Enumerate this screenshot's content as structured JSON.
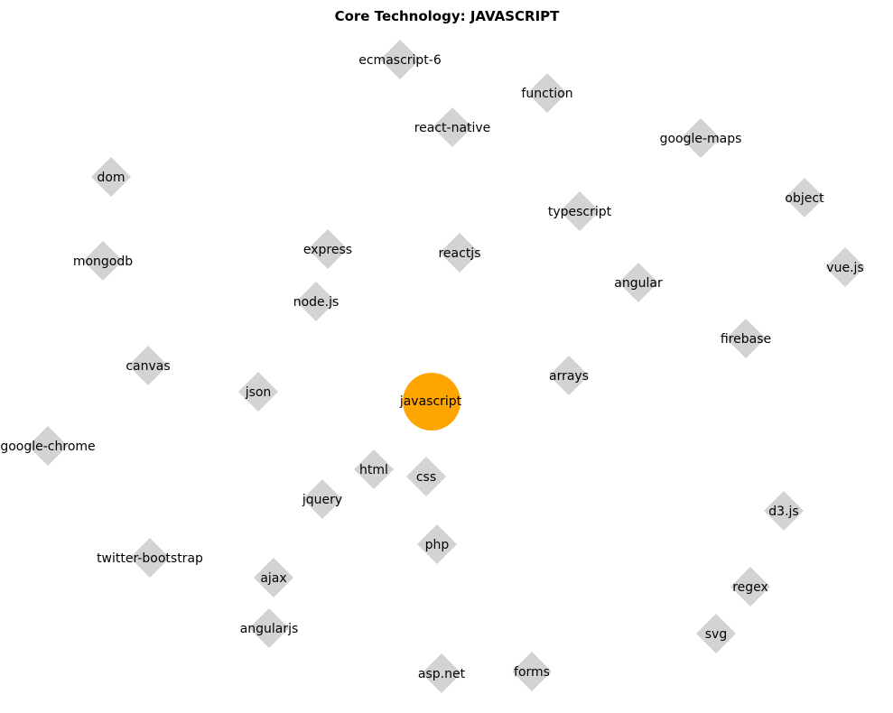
{
  "title": "Core Technology: JAVASCRIPT",
  "colors": {
    "center": "#FFA500",
    "node": "#D3D3D3",
    "text": "#000000"
  },
  "center_node": {
    "label": "javascript",
    "shape": "circle"
  },
  "node_shape": "diamond",
  "nodes": [
    {
      "id": "ecmascript-6",
      "label": "ecmascript-6"
    },
    {
      "id": "function",
      "label": "function"
    },
    {
      "id": "react-native",
      "label": "react-native"
    },
    {
      "id": "google-maps",
      "label": "google-maps"
    },
    {
      "id": "dom",
      "label": "dom"
    },
    {
      "id": "object",
      "label": "object"
    },
    {
      "id": "typescript",
      "label": "typescript"
    },
    {
      "id": "express",
      "label": "express"
    },
    {
      "id": "reactjs",
      "label": "reactjs"
    },
    {
      "id": "mongodb",
      "label": "mongodb"
    },
    {
      "id": "vue-js",
      "label": "vue.js"
    },
    {
      "id": "angular",
      "label": "angular"
    },
    {
      "id": "node-js",
      "label": "node.js"
    },
    {
      "id": "firebase",
      "label": "firebase"
    },
    {
      "id": "canvas",
      "label": "canvas"
    },
    {
      "id": "arrays",
      "label": "arrays"
    },
    {
      "id": "json",
      "label": "json"
    },
    {
      "id": "google-chrome",
      "label": "google-chrome"
    },
    {
      "id": "html",
      "label": "html"
    },
    {
      "id": "css",
      "label": "css"
    },
    {
      "id": "jquery",
      "label": "jquery"
    },
    {
      "id": "d3-js",
      "label": "d3.js"
    },
    {
      "id": "php",
      "label": "php"
    },
    {
      "id": "twitter-bootstrap",
      "label": "twitter-bootstrap"
    },
    {
      "id": "ajax",
      "label": "ajax"
    },
    {
      "id": "regex",
      "label": "regex"
    },
    {
      "id": "angularjs",
      "label": "angularjs"
    },
    {
      "id": "svg",
      "label": "svg"
    },
    {
      "id": "asp-net",
      "label": "asp.net"
    },
    {
      "id": "forms",
      "label": "forms"
    }
  ]
}
